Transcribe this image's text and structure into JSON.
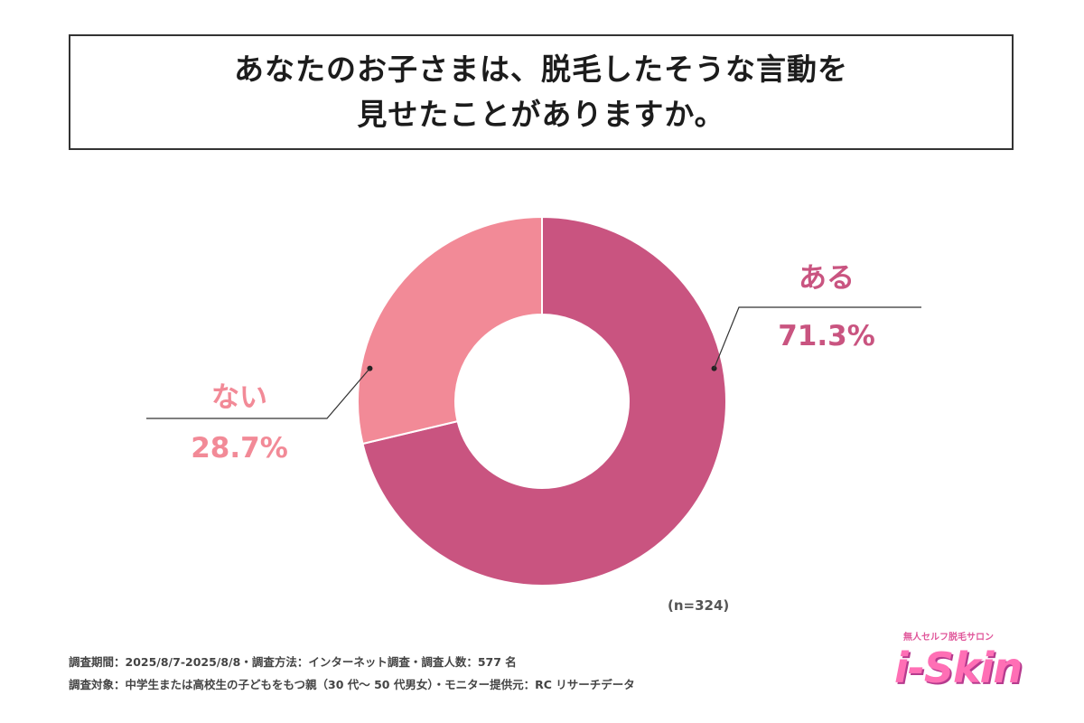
{
  "title": {
    "line1": "あなたのお子さまは、脱毛したそうな言動を",
    "line2": "見せたことがありますか。"
  },
  "chart_data": {
    "type": "pie",
    "donut": true,
    "categories": [
      "ある",
      "ない"
    ],
    "values": [
      71.3,
      28.7
    ],
    "value_labels": [
      "71.3%",
      "28.7%"
    ],
    "colors": [
      "#c95480",
      "#f28a97"
    ],
    "title": "あなたのお子さまは、脱毛したそうな言動を見せたことがありますか。",
    "n_note": "(n=324)"
  },
  "footer": {
    "line1": "調査期間：2025/8/7-2025/8/8・調査方法：インターネット調査・調査人数：577 名",
    "line2": "調査対象：中学生または高校生の子どもをもつ親（30 代〜 50 代男女）・モニター提供元：RC リサーチデータ"
  },
  "logo": {
    "tagline": "無人セルフ脱毛サロン",
    "brand": "i-Skin"
  }
}
